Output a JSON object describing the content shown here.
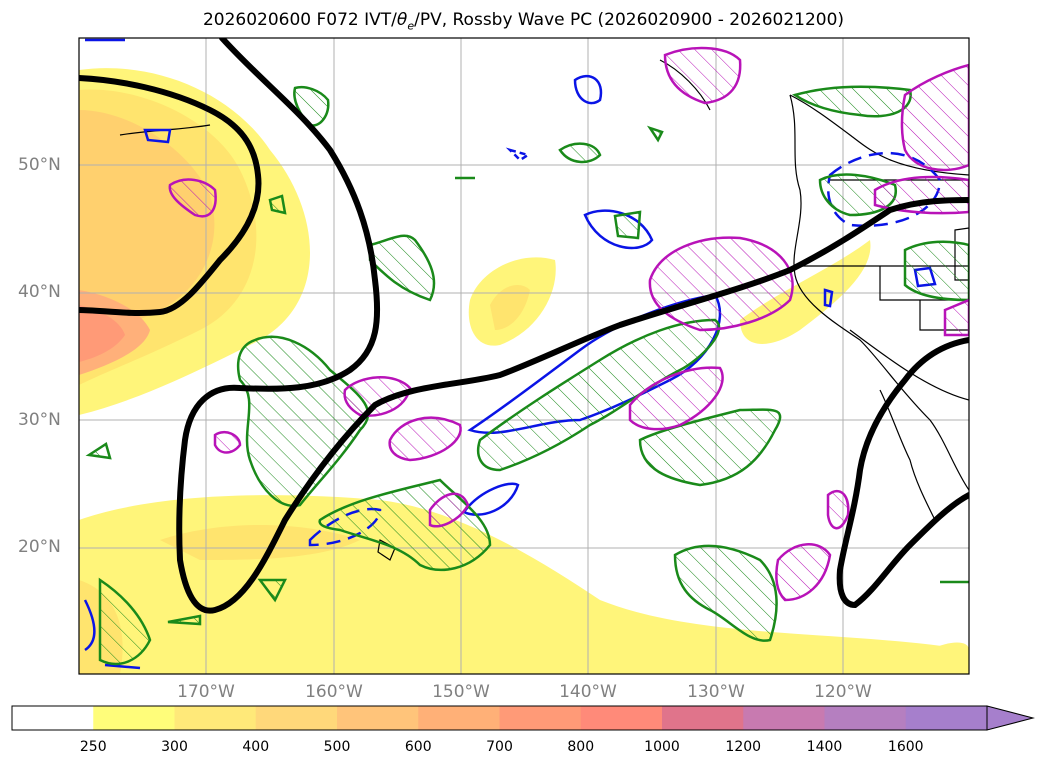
{
  "title": "2026020600 F072 IVT/θe/PV, Rossby Wave PC (2026020900 - 2026021200)",
  "title_parts": {
    "prefix": "2026020600 F072 IVT/",
    "theta": "θ",
    "theta_sub": "e",
    "suffix": "/PV, Rossby Wave PC (2026020900 - 2026021200)"
  },
  "lat_labels": [
    "50°N",
    "40°N",
    "30°N",
    "20°N"
  ],
  "lon_labels": [
    "170°W",
    "160°W",
    "150°W",
    "140°W",
    "130°W",
    "120°W"
  ],
  "colorbar": {
    "ticks": [
      "250",
      "300",
      "400",
      "500",
      "600",
      "700",
      "800",
      "1000",
      "1200",
      "1400",
      "1600"
    ],
    "colors": [
      "#ffffff",
      "#fffd7a",
      "#ffe979",
      "#ffd87a",
      "#ffc47a",
      "#ffb077",
      "#ff9a77",
      "#ff8a79",
      "#e0748b",
      "#c87ab0",
      "#b57fc0",
      "#a67fcc"
    ]
  },
  "colors": {
    "ivt_low": "#fff57a",
    "ivt_mid": "#ffd06e",
    "ivt_high": "#ff9a6e",
    "pv_contour": "#000000",
    "green": "#1a8a1a",
    "magenta": "#b813b8",
    "blue": "#0a14e6"
  }
}
